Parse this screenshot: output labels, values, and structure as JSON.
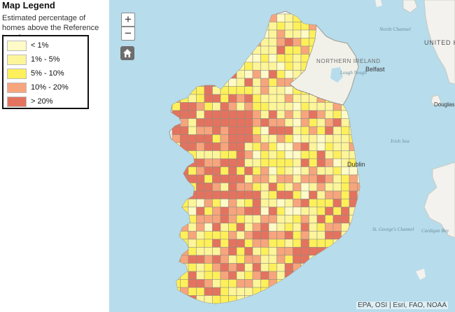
{
  "legend": {
    "title": "Map Legend",
    "subtitle": "Estimated percentage of homes above the Reference Levels",
    "items": [
      {
        "label": "< 1%",
        "color": "#fefbc8"
      },
      {
        "label": "1% - 5%",
        "color": "#fdf59a"
      },
      {
        "label": "5% - 10%",
        "color": "#fef05a"
      },
      {
        "label": "10% - 20%",
        "color": "#f7a57c"
      },
      {
        "label": "> 20%",
        "color": "#e3735f"
      }
    ]
  },
  "controls": {
    "zoom_in": "+",
    "zoom_out": "−",
    "home": "home-icon"
  },
  "map_labels": {
    "north_channel": "North Channel",
    "northern_ireland": "NORTHERN IRELAND",
    "lough_neagh": "Lough Neagh",
    "belfast": "Belfast",
    "united_kingdom": "UNITED KINGDOM",
    "douglas": "Douglas",
    "irish_sea": "Irish Sea",
    "dublin": "Dublin",
    "st_georges_channel": "St. George's Channel",
    "cardigan_bay": "Cardigan Bay"
  },
  "attribution": "EPA, OSI | Esri, FAO, NOAA",
  "colors": {
    "sea": "#b7dceb",
    "land": "#f3f2ee",
    "grid_line": "#8e8c82"
  }
}
